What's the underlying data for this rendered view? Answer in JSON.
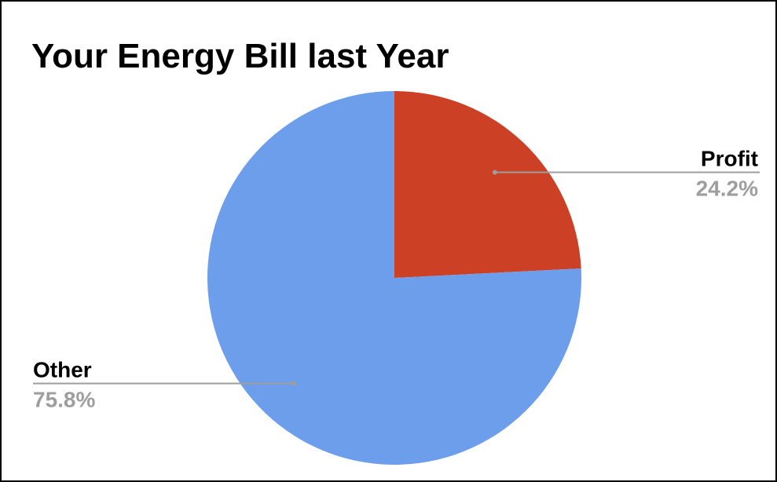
{
  "chart_data": {
    "type": "pie",
    "title": "Your Energy Bill last Year",
    "slices": [
      {
        "name": "Profit",
        "value": 24.2,
        "label": "24.2%",
        "color": "#cc4125"
      },
      {
        "name": "Other",
        "value": 75.8,
        "label": "75.8%",
        "color": "#6d9eeb"
      }
    ],
    "legend": "none",
    "labels": "outside-with-leader-lines"
  }
}
